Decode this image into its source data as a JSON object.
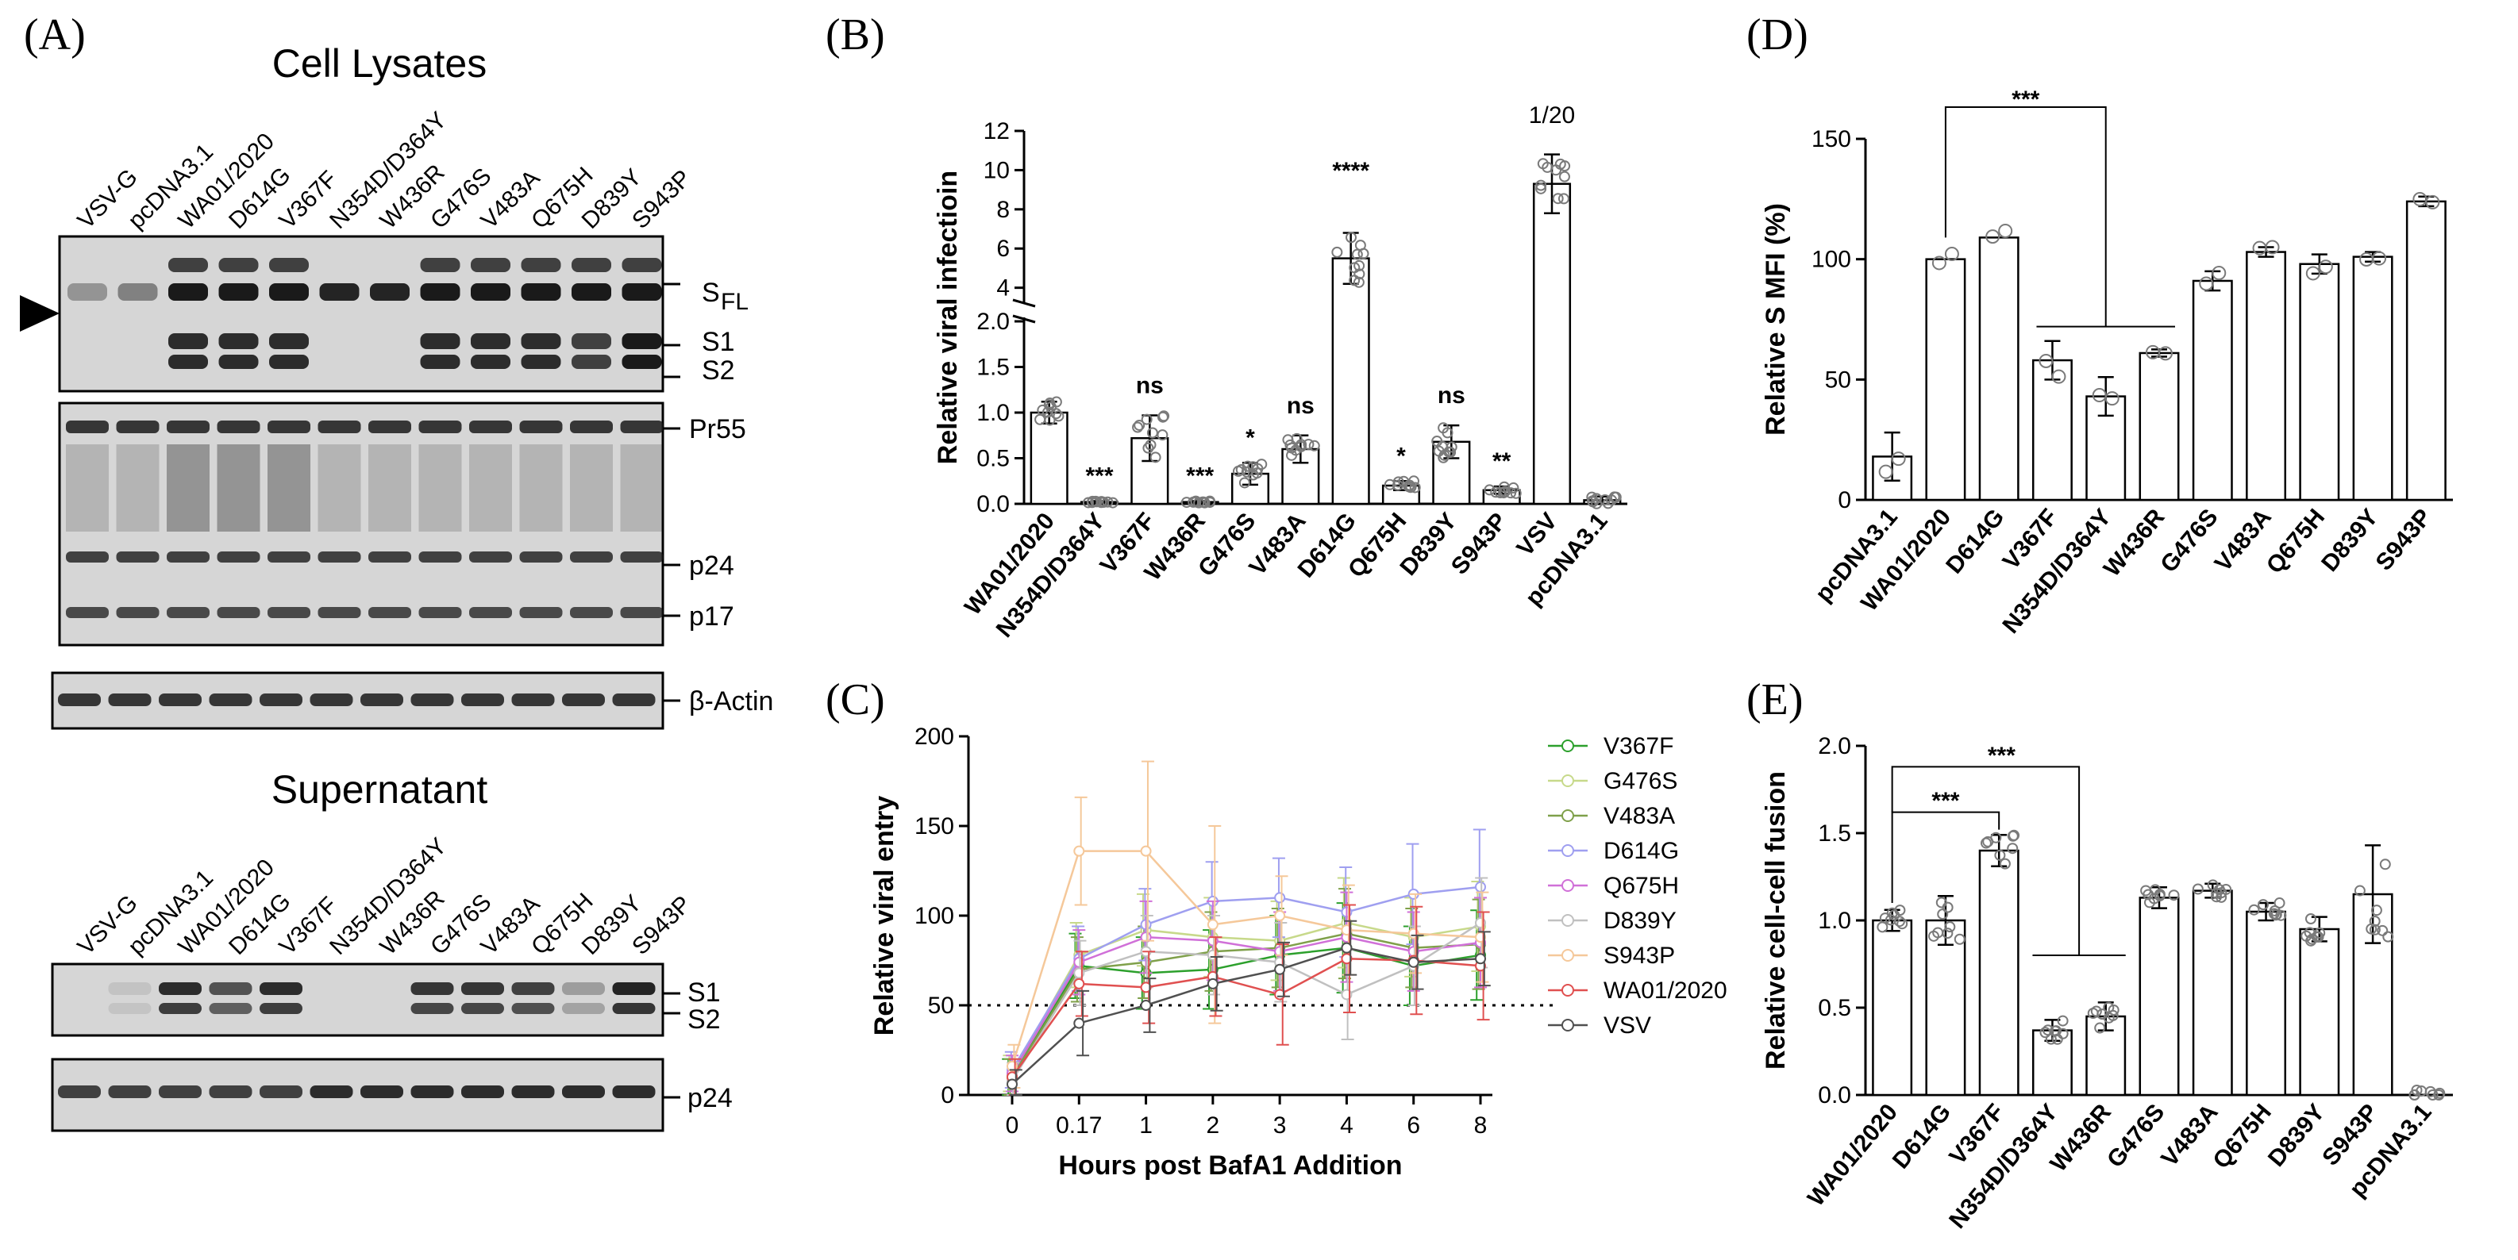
{
  "colors": {
    "axis": "#000000",
    "bar_fill": "#ffffff",
    "point": "#7a7a7a",
    "blot_bg": "#d6d6d6",
    "band": "#1a1a1a"
  },
  "blots": {
    "letter": "(A)",
    "arrow_icon": "black-triangle-arrow-icon",
    "lysates": {
      "title": "Cell Lysates",
      "lanes": [
        "VSV-G",
        "pcDNA3.1",
        "WA01/2020",
        "D614G",
        "V367F",
        "N354D/D364Y",
        "W436R",
        "G476S",
        "V483A",
        "Q675H",
        "D839Y",
        "S943P"
      ],
      "spike_labels": [
        "S",
        "FL",
        "S1",
        "S2"
      ],
      "gag_labels": [
        "Pr55",
        "p24",
        "p17"
      ],
      "actin_label": "β-Actin"
    },
    "supernatant": {
      "title": "Supernatant",
      "lanes": [
        "VSV-G",
        "pcDNA3.1",
        "WA01/2020",
        "D614G",
        "V367F",
        "N354D/D364Y",
        "W436R",
        "G476S",
        "V483A",
        "Q675H",
        "D839Y",
        "S943P"
      ],
      "spike_labels": [
        "S1",
        "S2"
      ],
      "p24_label": "p24"
    }
  },
  "chart_data": [
    {
      "id": "B",
      "letter": "(B)",
      "type": "bar",
      "title": "",
      "ylabel": "Relative viral infectioin",
      "xlabel": "",
      "y_axis_break": {
        "lower": [
          0,
          2.0
        ],
        "upper": [
          3.5,
          12
        ]
      },
      "yticks_lower": [
        "0.0",
        "0.5",
        "1.0",
        "1.5",
        "2.0"
      ],
      "yticks_upper": [
        "4",
        "6",
        "8",
        "10",
        "12"
      ],
      "categories": [
        "WA01/2020",
        "N354D/D364Y",
        "V367F",
        "W436R",
        "G476S",
        "V483A",
        "D614G",
        "Q675H",
        "D839Y",
        "S943P",
        "VSV",
        "pcDNA3.1"
      ],
      "values": [
        1.0,
        0.02,
        0.72,
        0.02,
        0.33,
        0.6,
        5.5,
        0.2,
        0.68,
        0.15,
        9.3,
        0.04
      ],
      "errors": [
        0.12,
        0.01,
        0.25,
        0.01,
        0.12,
        0.15,
        1.3,
        0.05,
        0.18,
        0.04,
        1.5,
        0.04
      ],
      "significance": [
        "",
        "***",
        "ns",
        "***",
        "*",
        "ns",
        "****",
        "*",
        "ns",
        "**",
        "1/20",
        ""
      ]
    },
    {
      "id": "C",
      "letter": "(C)",
      "type": "line",
      "title": "",
      "ylabel": "Relative viral entry",
      "xlabel": "Hours post BafA1 Addition",
      "x": [
        "0",
        "0.17",
        "1",
        "2",
        "3",
        "4",
        "6",
        "8"
      ],
      "yticks": [
        "0",
        "50",
        "100",
        "150",
        "200"
      ],
      "ylim": [
        0,
        200
      ],
      "reference_line": 50,
      "legend": "right",
      "series": [
        {
          "name": "V367F",
          "color": "#2ca02c",
          "values": [
            10,
            72,
            68,
            70,
            78,
            82,
            72,
            78
          ],
          "errors": [
            10,
            18,
            20,
            22,
            22,
            25,
            22,
            25
          ]
        },
        {
          "name": "G476S",
          "color": "#c7d98a",
          "values": [
            12,
            78,
            92,
            88,
            86,
            96,
            88,
            94
          ],
          "errors": [
            10,
            18,
            20,
            22,
            22,
            25,
            22,
            25
          ]
        },
        {
          "name": "V483A",
          "color": "#7fa04a",
          "values": [
            10,
            70,
            74,
            80,
            82,
            90,
            82,
            84
          ],
          "errors": [
            10,
            18,
            20,
            22,
            22,
            25,
            22,
            25
          ]
        },
        {
          "name": "D614G",
          "color": "#9f9ff0",
          "values": [
            14,
            76,
            95,
            108,
            110,
            102,
            112,
            116
          ],
          "errors": [
            10,
            18,
            20,
            22,
            22,
            25,
            28,
            32
          ]
        },
        {
          "name": "Q675H",
          "color": "#d070d8",
          "values": [
            12,
            74,
            88,
            86,
            80,
            88,
            80,
            85
          ],
          "errors": [
            10,
            18,
            20,
            22,
            22,
            25,
            22,
            25
          ]
        },
        {
          "name": "D839Y",
          "color": "#c0c0c0",
          "values": [
            8,
            68,
            80,
            78,
            74,
            56,
            72,
            96
          ],
          "errors": [
            10,
            18,
            20,
            22,
            22,
            25,
            22,
            25
          ]
        },
        {
          "name": "S943P",
          "color": "#f5c89a",
          "values": [
            16,
            136,
            136,
            95,
            100,
            92,
            90,
            88
          ],
          "errors": [
            12,
            30,
            50,
            55,
            22,
            25,
            22,
            25
          ]
        },
        {
          "name": "WA01/2020",
          "color": "#e05050",
          "values": [
            10,
            62,
            60,
            66,
            56,
            76,
            75,
            72
          ],
          "errors": [
            10,
            18,
            20,
            22,
            28,
            30,
            30,
            30
          ]
        },
        {
          "name": "VSV",
          "color": "#505050",
          "values": [
            6,
            40,
            50,
            62,
            70,
            82,
            74,
            76
          ],
          "errors": [
            8,
            18,
            15,
            15,
            15,
            15,
            15,
            15
          ]
        }
      ]
    },
    {
      "id": "D",
      "letter": "(D)",
      "type": "bar",
      "title": "",
      "ylabel": "Relative S MFI (%)",
      "xlabel": "",
      "ylim": [
        0,
        150
      ],
      "yticks": [
        "0",
        "50",
        "100",
        "150"
      ],
      "categories": [
        "pcDNA3.1",
        "WA01/2020",
        "D614G",
        "V367F",
        "N354D/D364Y",
        "W436R",
        "G476S",
        "V483A",
        "Q675H",
        "D839Y",
        "S943P"
      ],
      "values": [
        18,
        100,
        109,
        58,
        43,
        61,
        91,
        103,
        98,
        101,
        124
      ],
      "errors": [
        10,
        0,
        0,
        8,
        8,
        1.5,
        4,
        2,
        4,
        2,
        2
      ],
      "significance_label": "***"
    },
    {
      "id": "E",
      "letter": "(E)",
      "type": "bar",
      "title": "",
      "ylabel": "Relative cell-cell fusion",
      "xlabel": "",
      "ylim": [
        0,
        2.0
      ],
      "yticks": [
        "0.0",
        "0.5",
        "1.0",
        "1.5",
        "2.0"
      ],
      "categories": [
        "WA01/2020",
        "D614G",
        "V367F",
        "N354D/D364Y",
        "W436R",
        "G476S",
        "V483A",
        "Q675H",
        "D839Y",
        "S943P",
        "pcDNA3.1"
      ],
      "values": [
        1.0,
        1.0,
        1.4,
        0.37,
        0.45,
        1.13,
        1.17,
        1.05,
        0.95,
        1.15,
        0.0
      ],
      "errors": [
        0.06,
        0.14,
        0.09,
        0.06,
        0.08,
        0.06,
        0.04,
        0.05,
        0.07,
        0.28,
        0.0
      ],
      "significance_labels": [
        "***",
        "***"
      ]
    }
  ]
}
